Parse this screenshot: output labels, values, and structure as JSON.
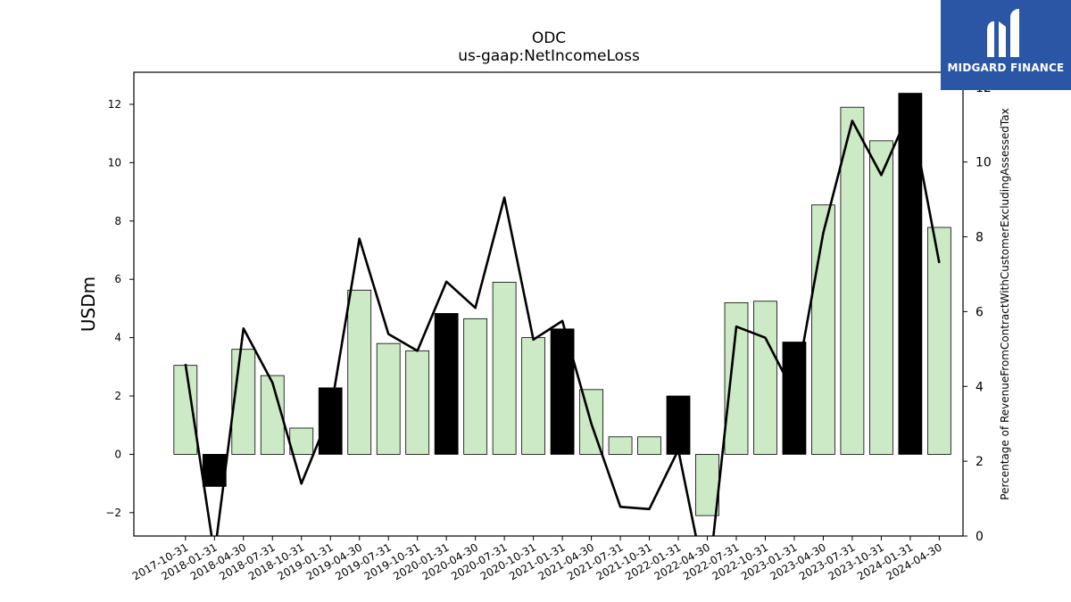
{
  "chart_data": {
    "type": "bar",
    "title": "ODC",
    "subtitle": "us-gaap:NetIncomeLoss",
    "ylabel": "USDm",
    "y2label": "Percentage of RevenueFromContractWithCustomerExcludingAssessedTax",
    "ylim": [
      -2.8,
      13.1
    ],
    "y2lim": [
      0,
      12.4
    ],
    "yticks": [
      -2,
      0,
      2,
      4,
      6,
      8,
      10,
      12
    ],
    "y2ticks": [
      0,
      2,
      4,
      6,
      8,
      10,
      12
    ],
    "ytick_labels": [
      "−2",
      "0",
      "2",
      "4",
      "6",
      "8",
      "10",
      "12"
    ],
    "y2tick_labels": [
      "0",
      "2",
      "4",
      "6",
      "8",
      "10",
      "12"
    ],
    "categories": [
      "2017-10-31",
      "2018-01-31",
      "2018-04-30",
      "2018-07-31",
      "2018-10-31",
      "2019-01-31",
      "2019-04-30",
      "2019-07-31",
      "2019-10-31",
      "2020-01-31",
      "2020-04-30",
      "2020-07-31",
      "2020-10-31",
      "2021-01-31",
      "2021-04-30",
      "2021-07-31",
      "2021-10-31",
      "2022-01-31",
      "2022-04-30",
      "2022-07-31",
      "2022-10-31",
      "2023-01-31",
      "2023-04-30",
      "2023-07-31",
      "2023-10-31",
      "2024-01-31",
      "2024-04-30"
    ],
    "series": [
      {
        "type": "bar",
        "values": [
          3.05,
          -1.1,
          3.6,
          2.7,
          0.9,
          2.28,
          5.63,
          3.8,
          3.55,
          4.83,
          4.65,
          5.9,
          4.0,
          4.3,
          2.22,
          0.6,
          0.6,
          2.0,
          -2.1,
          5.2,
          5.25,
          3.85,
          8.55,
          11.9,
          10.75,
          12.38,
          7.78
        ],
        "highlight": [
          false,
          true,
          false,
          false,
          false,
          true,
          false,
          false,
          false,
          true,
          false,
          false,
          false,
          true,
          false,
          false,
          false,
          true,
          false,
          false,
          false,
          true,
          false,
          false,
          false,
          true,
          false
        ]
      },
      {
        "type": "line",
        "axis": "secondary",
        "values": [
          4.6,
          -0.5,
          5.55,
          4.1,
          1.4,
          3.3,
          7.95,
          5.4,
          4.95,
          6.8,
          6.1,
          9.05,
          5.25,
          5.75,
          3.0,
          0.78,
          0.72,
          2.3,
          -1.5,
          5.6,
          5.3,
          3.8,
          8.1,
          11.1,
          9.65,
          11.4,
          7.3
        ]
      }
    ],
    "colors": {
      "bar": "#cdeac6",
      "bar_highlight": "#000000",
      "line": "#000000",
      "edge": "#000000"
    }
  },
  "logo": {
    "text": "MIDGARD FINANCE",
    "bg": "#2b56a6"
  }
}
